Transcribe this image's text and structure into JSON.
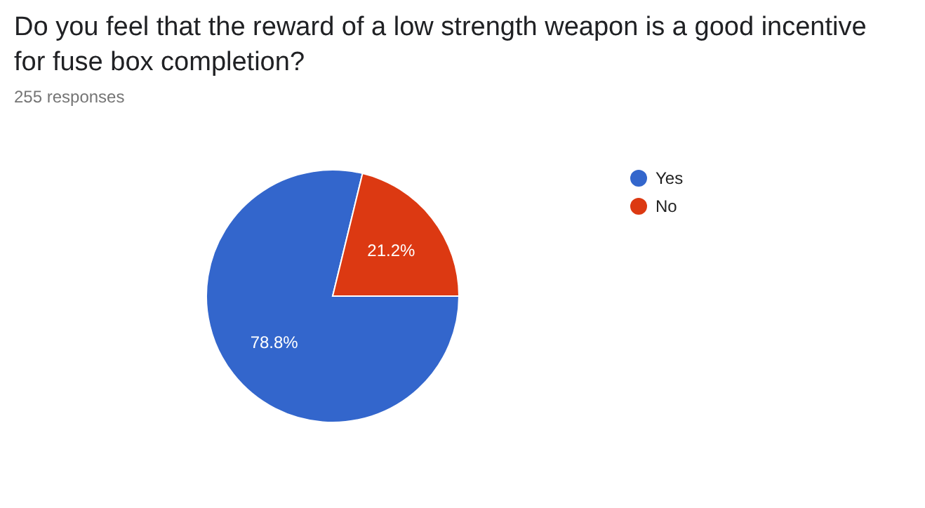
{
  "chart_data": {
    "type": "pie",
    "title": "Do you feel that the reward of a low strength weapon is a good incentive for fuse box completion?",
    "subtitle": "255 responses",
    "categories": [
      "Yes",
      "No"
    ],
    "values": [
      78.8,
      21.2
    ],
    "colors": [
      "#3366cc",
      "#dc3912"
    ],
    "value_labels": [
      "78.8%",
      "21.2%"
    ],
    "legend": "right"
  }
}
